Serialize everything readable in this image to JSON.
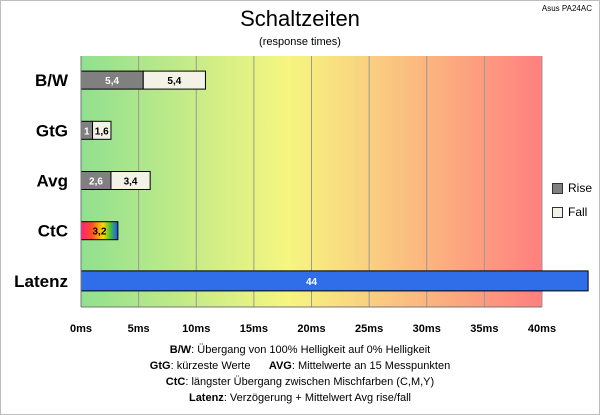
{
  "header": {
    "title": "Schaltzeiten",
    "subtitle": "(response times)",
    "model": "Asus PA24AC"
  },
  "chart_data": {
    "type": "bar",
    "orientation": "horizontal",
    "stacked": true,
    "categories": [
      "B/W",
      "GtG",
      "Avg",
      "CtC",
      "Latenz"
    ],
    "series": [
      {
        "name": "Rise",
        "values": [
          5.4,
          1,
          2.6,
          null,
          null
        ],
        "color": "#808080"
      },
      {
        "name": "Fall",
        "values": [
          5.4,
          1.6,
          3.4,
          null,
          null
        ],
        "color": "#f2f2e6"
      }
    ],
    "single_values": {
      "CtC": 3.2,
      "Latenz": 44
    },
    "labels": {
      "CtC": "3,2",
      "Latenz": "44"
    },
    "value_labels": {
      "B/W": [
        "5,4",
        "5,4"
      ],
      "GtG": [
        "1",
        "1,6"
      ],
      "Avg": [
        "2,6",
        "3,4"
      ]
    },
    "xlim": [
      0,
      40
    ],
    "xticks": [
      "0ms",
      "5ms",
      "10ms",
      "15ms",
      "20ms",
      "25ms",
      "30ms",
      "35ms",
      "40ms"
    ],
    "background_gradient": [
      "#90e090",
      "#f6f680",
      "#ff7f7f"
    ],
    "latency_color": "#2f6ee8",
    "grid": true,
    "legend_position": "right"
  },
  "notes": [
    {
      "key": "B/W",
      "text": ":  Übergang von 100% Helligkeit auf 0% Helligkeit"
    },
    {
      "key": "GtG",
      "text": ": kürzeste  Werte",
      "key2": "AVG",
      "text2": ": Mittelwerte  an 15 Messpunkten"
    },
    {
      "key": "CtC",
      "text": ": längster Übergang  zwischen Mischfarben  (C,M,Y)"
    },
    {
      "key": "Latenz",
      "text": ": Verzögerung  + Mittelwert Avg rise/fall"
    }
  ]
}
